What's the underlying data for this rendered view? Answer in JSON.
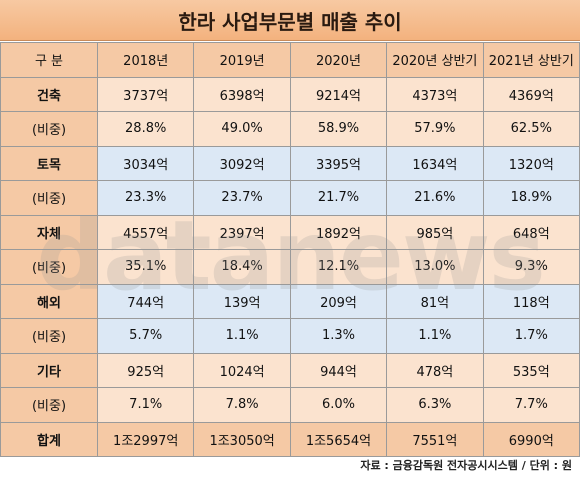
{
  "title": "한라 사업부문별 매출 추이",
  "headers": [
    "구  분",
    "2018년",
    "2019년",
    "2020년",
    "2020년 상반기",
    "2021년 상반기"
  ],
  "rows": [
    {
      "label": "건축",
      "style": "orange",
      "values": [
        "3737억",
        "6398억",
        "9214억",
        "4373억",
        "4369억"
      ]
    },
    {
      "label": "(비중)",
      "style": "orange",
      "values": [
        "28.8%",
        "49.0%",
        "58.9%",
        "57.9%",
        "62.5%"
      ]
    },
    {
      "label": "토목",
      "style": "blue",
      "values": [
        "3034억",
        "3092억",
        "3395억",
        "1634억",
        "1320억"
      ]
    },
    {
      "label": "(비중)",
      "style": "blue",
      "values": [
        "23.3%",
        "23.7%",
        "21.7%",
        "21.6%",
        "18.9%"
      ]
    },
    {
      "label": "자체",
      "style": "orange",
      "values": [
        "4557억",
        "2397억",
        "1892억",
        "985억",
        "648억"
      ]
    },
    {
      "label": "(비중)",
      "style": "orange",
      "values": [
        "35.1%",
        "18.4%",
        "12.1%",
        "13.0%",
        "9.3%"
      ]
    },
    {
      "label": "해외",
      "style": "blue",
      "values": [
        "744억",
        "139억",
        "209억",
        "81억",
        "118억"
      ]
    },
    {
      "label": "(비중)",
      "style": "blue",
      "values": [
        "5.7%",
        "1.1%",
        "1.3%",
        "1.1%",
        "1.7%"
      ]
    },
    {
      "label": "기타",
      "style": "orange",
      "values": [
        "925억",
        "1024억",
        "944억",
        "478억",
        "535억"
      ]
    },
    {
      "label": "(비중)",
      "style": "orange",
      "values": [
        "7.1%",
        "7.8%",
        "6.0%",
        "6.3%",
        "7.7%"
      ]
    },
    {
      "label": "합계",
      "style": "total",
      "values": [
        "1조2997억",
        "1조3050억",
        "1조5654억",
        "7551억",
        "6990억"
      ]
    }
  ],
  "watermark": "datanews",
  "source": "자료 : 금융감독원 전자공시시스템 / 단위 : 원"
}
